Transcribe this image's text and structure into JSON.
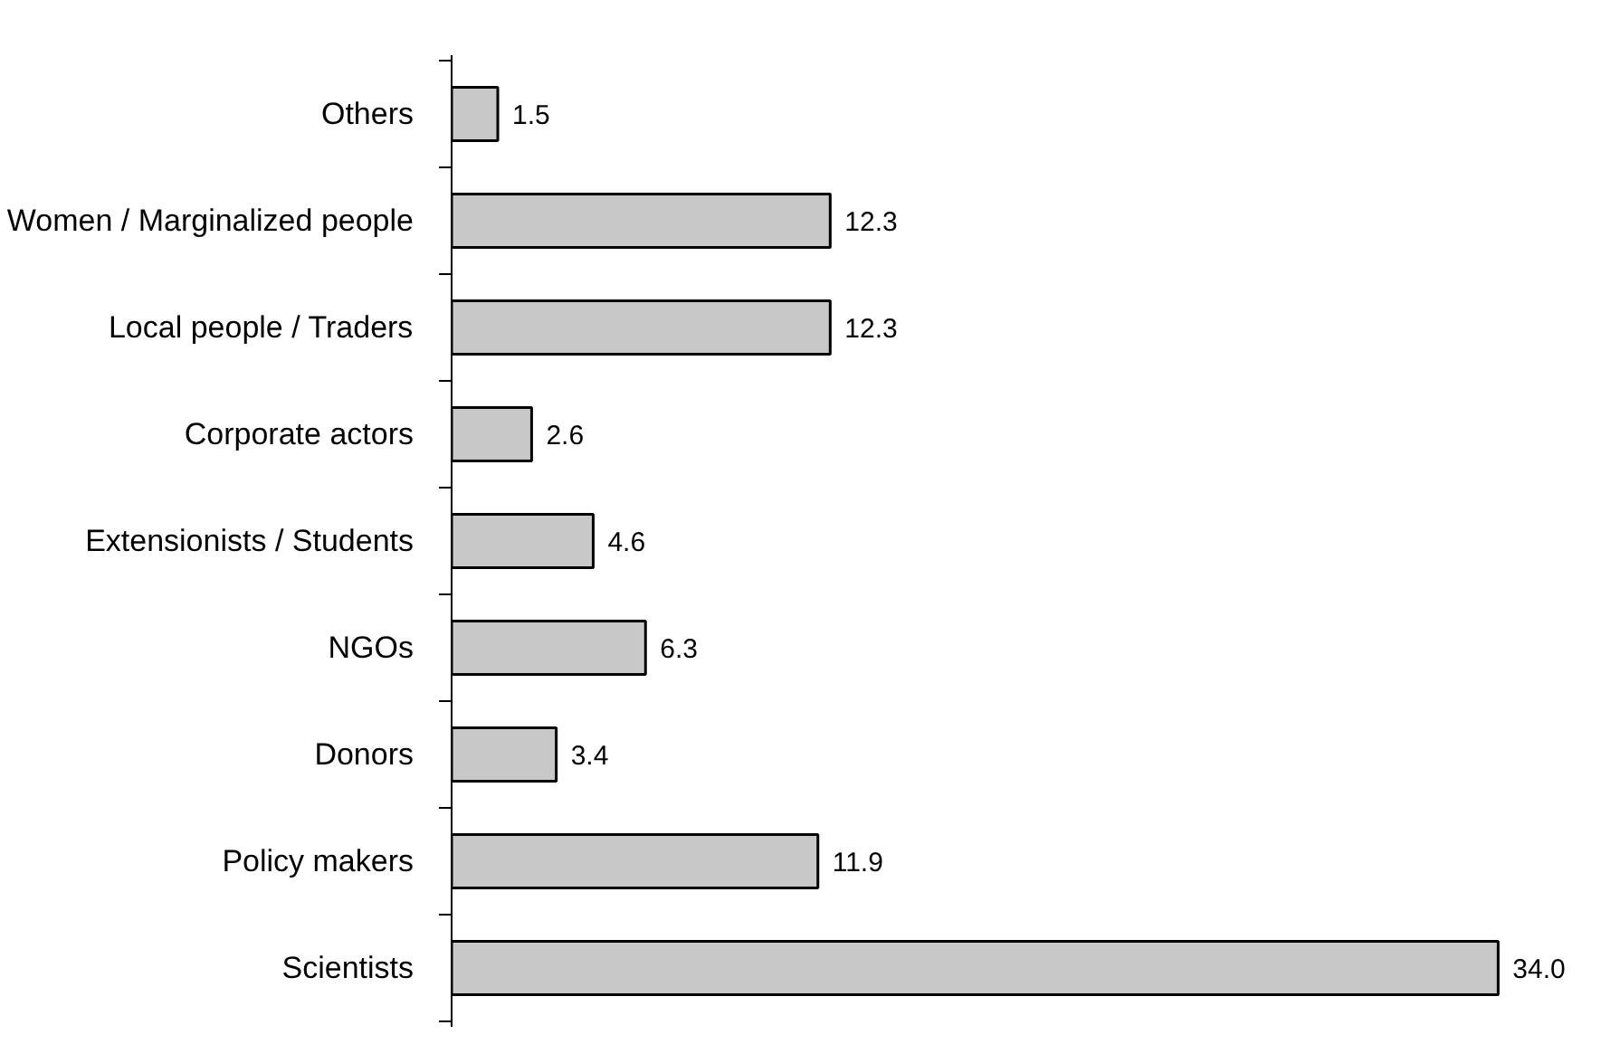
{
  "chart_data": {
    "type": "bar",
    "orientation": "horizontal",
    "categories": [
      "Others",
      "Women / Marginalized people",
      "Local people / Traders",
      "Corporate actors",
      "Extensionists / Students",
      "NGOs",
      "Donors",
      "Policy makers",
      "Scientists"
    ],
    "values": [
      1.5,
      12.3,
      12.3,
      2.6,
      4.6,
      6.3,
      3.4,
      11.9,
      34.0
    ],
    "value_labels": [
      "1.5",
      "12.3",
      "12.3",
      "2.6",
      "4.6",
      "6.3",
      "3.4",
      "11.9",
      "34.0"
    ],
    "color": "#c8c8c8",
    "grid": false
  }
}
